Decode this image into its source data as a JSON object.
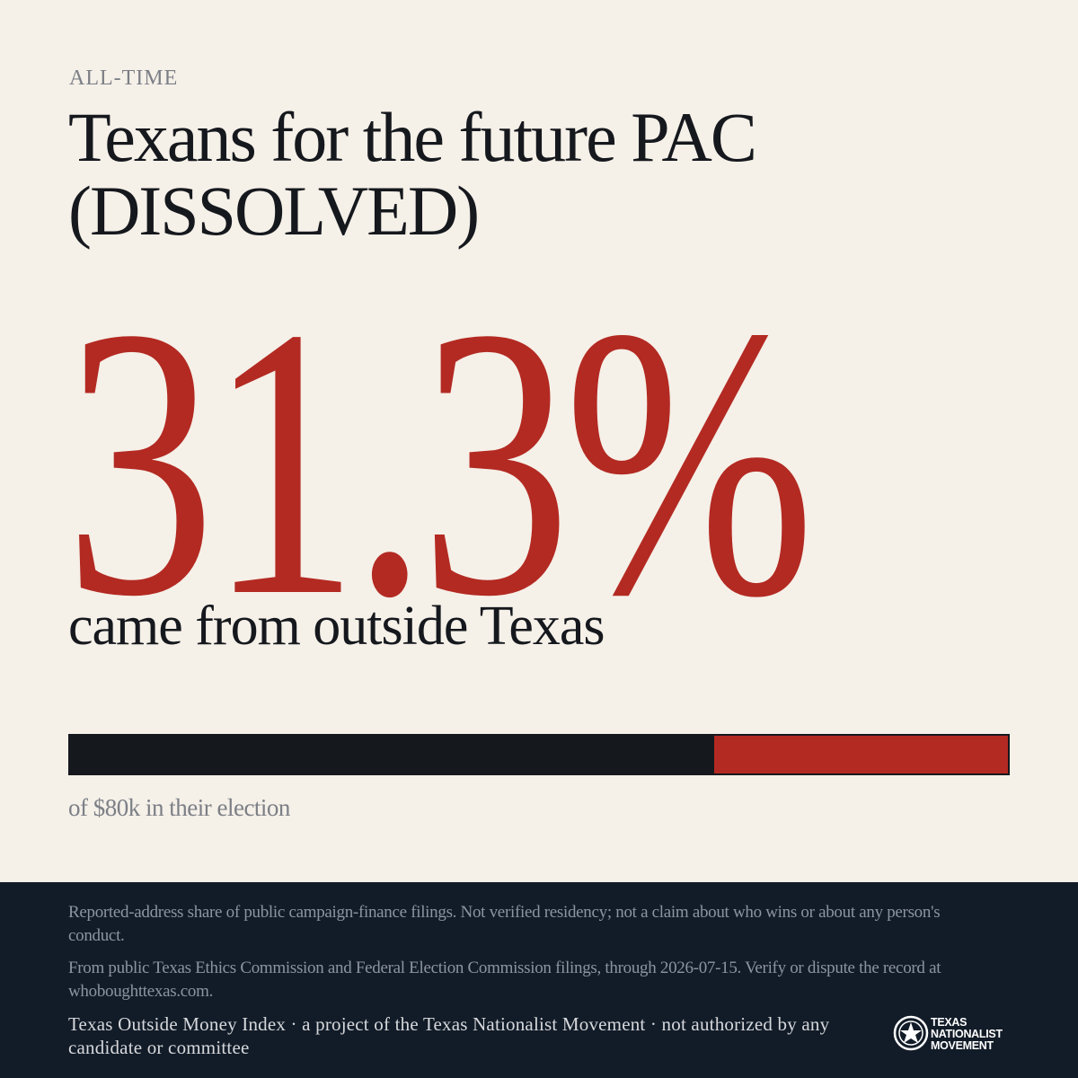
{
  "eyebrow": "ALL-TIME",
  "title": "Texans for the future PAC (DISSOLVED)",
  "share": 31.3,
  "share_label": "31.3%",
  "subhead": "came from outside Texas",
  "caption": "of $80k in their election",
  "footer": {
    "note": "Reported-address share of public campaign-finance filings. Not verified residency; not a claim about who wins or about any person's conduct.",
    "source": "From public Texas Ethics Commission and Federal Election Commission filings, through 2026-07-15. Verify or dispute the record at whoboughttexas.com.",
    "credit": "Texas Outside Money Index · a project of the Texas Nationalist Movement · not authorized by any candidate or committee",
    "logo_lines": [
      "TEXAS",
      "NATIONALIST",
      "MOVEMENT"
    ]
  }
}
